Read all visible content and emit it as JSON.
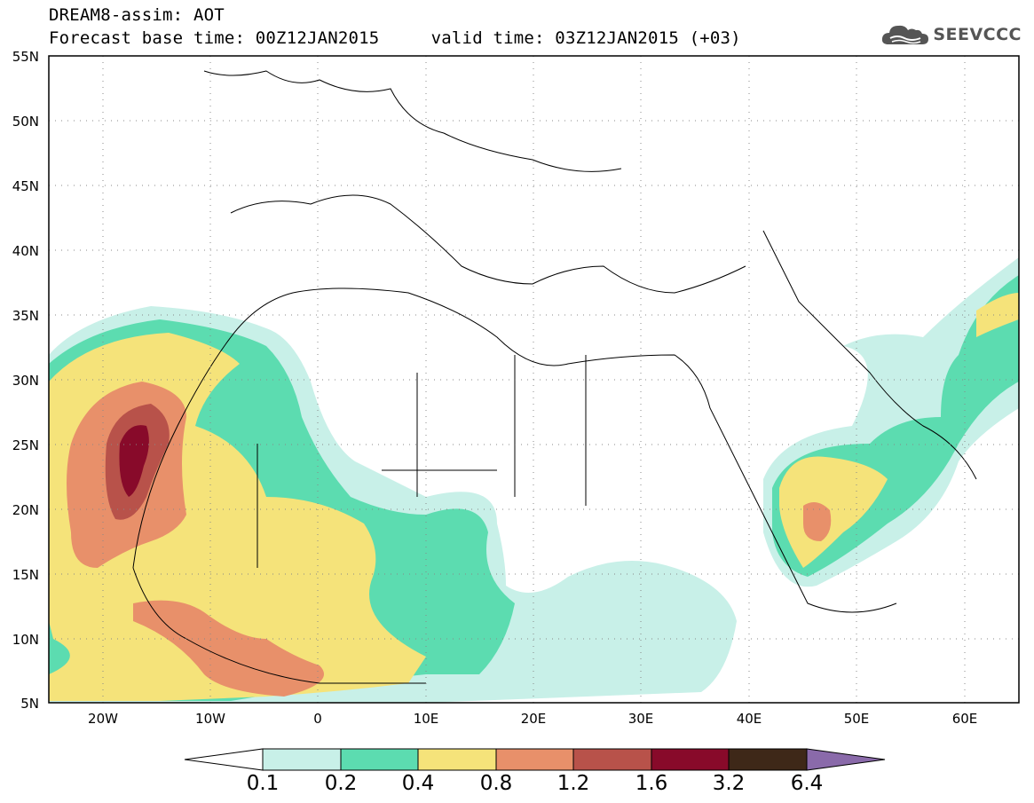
{
  "header": {
    "line1": "DREAM8-assim: AOT",
    "line2": "Forecast base time: 00Z12JAN2015     valid time: 03Z12JAN2015 (+03)",
    "logo_text": "SEEVCCC",
    "logo_icon": "cloud-icon"
  },
  "map": {
    "projection": "lat-lon",
    "lon_range": [
      -25,
      65
    ],
    "lat_range": [
      5,
      55
    ],
    "lat_labels": [
      "55N",
      "50N",
      "45N",
      "40N",
      "35N",
      "30N",
      "25N",
      "20N",
      "15N",
      "10N",
      "5N"
    ],
    "lon_labels": [
      "20W",
      "10W",
      "0",
      "10E",
      "20E",
      "30E",
      "40E",
      "50E",
      "60E"
    ],
    "grid": "dotted"
  },
  "colorbar": {
    "levels": [
      "0.1",
      "0.2",
      "0.4",
      "0.8",
      "1.2",
      "1.6",
      "3.2",
      "6.4"
    ],
    "colors": [
      "#c8f0e8",
      "#5cdcb0",
      "#f5e37a",
      "#e8906a",
      "#b8524a",
      "#880a2a",
      "#3e2818",
      "#8a6aaa"
    ],
    "under_color": "#ffffff"
  }
}
